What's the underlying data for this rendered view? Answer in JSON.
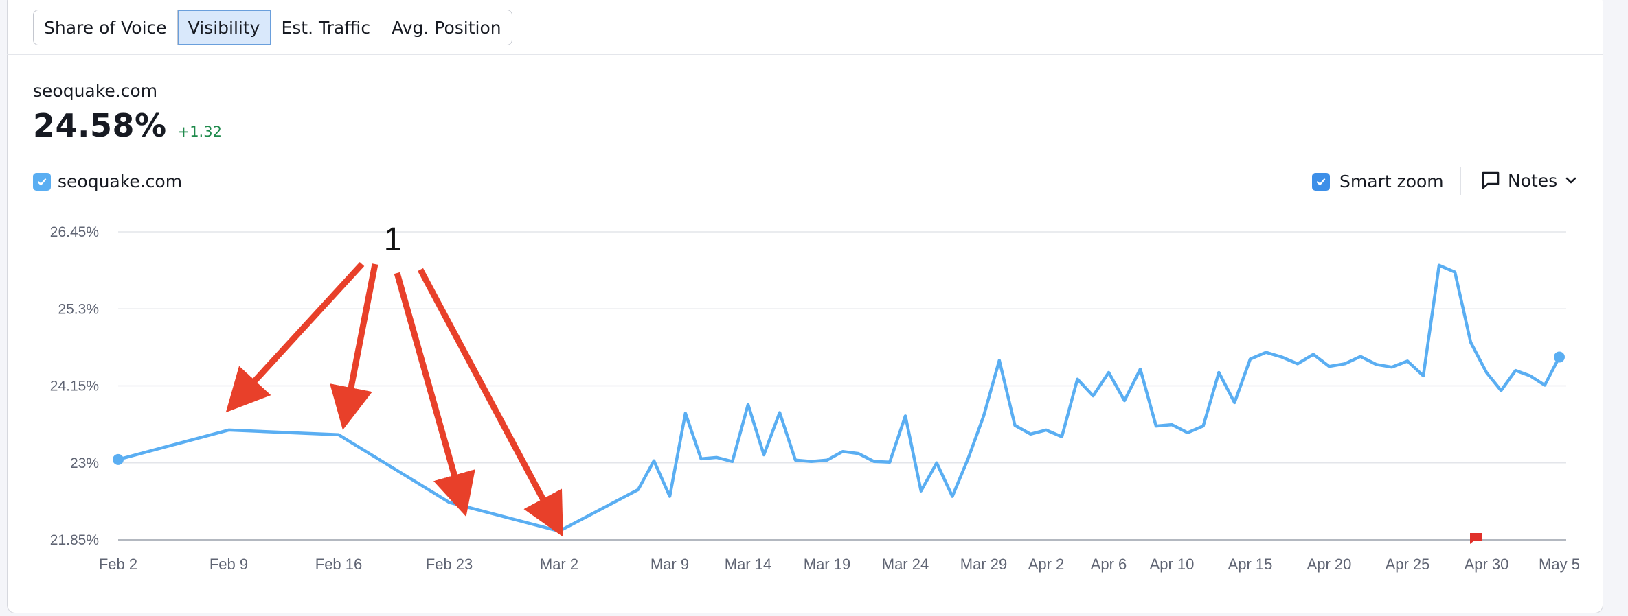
{
  "tabs": [
    {
      "label": "Share of Voice",
      "active": false
    },
    {
      "label": "Visibility",
      "active": true
    },
    {
      "label": "Est. Traffic",
      "active": false
    },
    {
      "label": "Avg. Position",
      "active": false
    }
  ],
  "summary": {
    "domain": "seoquake.com",
    "value": "24.58%",
    "delta": "+1.32"
  },
  "legend": {
    "label": "seoquake.com",
    "checked": true,
    "color": "#5aaef2"
  },
  "smart_zoom": {
    "label": "Smart zoom",
    "checked": true
  },
  "notes": {
    "label": "Notes"
  },
  "annotation": {
    "text": "1",
    "color": "#e8402a"
  },
  "colors": {
    "line": "#5aaef2",
    "note_flag": "#e0302a",
    "grid": "#e3e5ea",
    "delta": "#1f8a4c"
  },
  "chart_data": {
    "type": "line",
    "title": "",
    "xlabel": "",
    "ylabel": "",
    "ylim": [
      21.85,
      26.45
    ],
    "y_ticks": [
      "26.45%",
      "25.3%",
      "24.15%",
      "23%",
      "21.85%"
    ],
    "x_ticks": [
      "Feb 2",
      "Feb 9",
      "Feb 16",
      "Feb 23",
      "Mar 2",
      "Mar 9",
      "Mar 14",
      "Mar 19",
      "Mar 24",
      "Mar 29",
      "Apr 2",
      "Apr 6",
      "Apr 10",
      "Apr 15",
      "Apr 20",
      "Apr 25",
      "Apr 30",
      "May 5"
    ],
    "grid": true,
    "series": [
      {
        "name": "seoquake.com",
        "points": [
          [
            "Feb 2",
            23.05
          ],
          [
            "Feb 9",
            23.49
          ],
          [
            "Feb 16",
            23.42
          ],
          [
            "Feb 23",
            22.41
          ],
          [
            "Mar 2",
            21.98
          ],
          [
            "Mar 7",
            22.6
          ],
          [
            "Mar 8",
            23.03
          ],
          [
            "Mar 9",
            22.5
          ],
          [
            "Mar 10",
            23.74
          ],
          [
            "Mar 11",
            23.06
          ],
          [
            "Mar 12",
            23.08
          ],
          [
            "Mar 13",
            23.02
          ],
          [
            "Mar 14",
            23.87
          ],
          [
            "Mar 15",
            23.12
          ],
          [
            "Mar 16",
            23.75
          ],
          [
            "Mar 17",
            23.04
          ],
          [
            "Mar 18",
            23.02
          ],
          [
            "Mar 19",
            23.04
          ],
          [
            "Mar 20",
            23.17
          ],
          [
            "Mar 21",
            23.14
          ],
          [
            "Mar 22",
            23.02
          ],
          [
            "Mar 23",
            23.01
          ],
          [
            "Mar 24",
            23.7
          ],
          [
            "Mar 25",
            22.58
          ],
          [
            "Mar 26",
            23.0
          ],
          [
            "Mar 27",
            22.5
          ],
          [
            "Mar 28",
            23.06
          ],
          [
            "Mar 29",
            23.7
          ],
          [
            "Mar 30",
            24.53
          ],
          [
            "Mar 31",
            23.56
          ],
          [
            "Apr 1",
            23.43
          ],
          [
            "Apr 2",
            23.49
          ],
          [
            "Apr 3",
            23.39
          ],
          [
            "Apr 4",
            24.25
          ],
          [
            "Apr 5",
            24.0
          ],
          [
            "Apr 6",
            24.35
          ],
          [
            "Apr 7",
            23.93
          ],
          [
            "Apr 8",
            24.4
          ],
          [
            "Apr 9",
            23.55
          ],
          [
            "Apr 10",
            23.57
          ],
          [
            "Apr 11",
            23.45
          ],
          [
            "Apr 12",
            23.55
          ],
          [
            "Apr 13",
            24.35
          ],
          [
            "Apr 14",
            23.9
          ],
          [
            "Apr 15",
            24.55
          ],
          [
            "Apr 16",
            24.65
          ],
          [
            "Apr 17",
            24.58
          ],
          [
            "Apr 18",
            24.48
          ],
          [
            "Apr 19",
            24.62
          ],
          [
            "Apr 20",
            24.44
          ],
          [
            "Apr 21",
            24.48
          ],
          [
            "Apr 22",
            24.59
          ],
          [
            "Apr 23",
            24.47
          ],
          [
            "Apr 24",
            24.43
          ],
          [
            "Apr 25",
            24.52
          ],
          [
            "Apr 26",
            24.3
          ],
          [
            "Apr 27",
            25.95
          ],
          [
            "Apr 28",
            25.85
          ],
          [
            "Apr 29",
            24.8
          ],
          [
            "Apr 30",
            24.35
          ],
          [
            "May 1",
            24.08
          ],
          [
            "May 2",
            24.38
          ],
          [
            "May 3",
            24.3
          ],
          [
            "May 4",
            24.16
          ],
          [
            "May 5",
            24.58
          ]
        ]
      }
    ],
    "note_marker": {
      "date": "Apr 30"
    }
  }
}
